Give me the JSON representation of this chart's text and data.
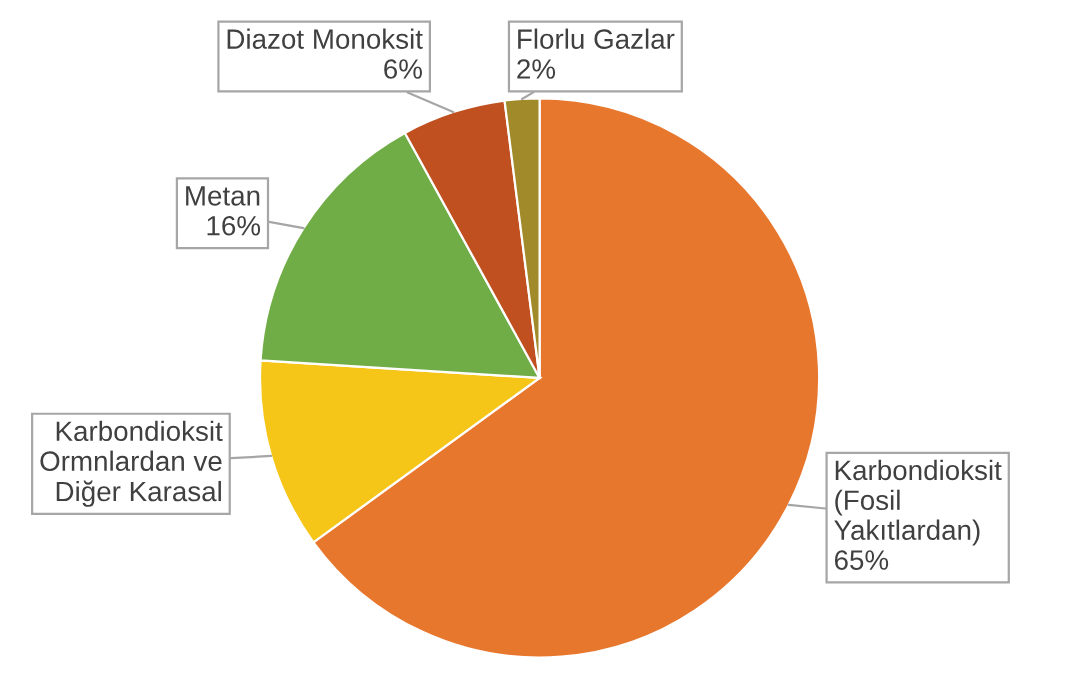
{
  "chart_data": {
    "type": "pie",
    "categories": [
      "Karbondioksit\n(Fosil\nYakıtlardan)",
      "Karbondioksit\nOrmnlardan ve\nDiğer Karasal",
      "Metan",
      "Diazot Monoksit",
      "Florlu Gazlar"
    ],
    "values": [
      65,
      11,
      16,
      6,
      2
    ],
    "value_labels": [
      "65%",
      null,
      "16%",
      "6%",
      "2%"
    ],
    "colors": [
      "#e8772e",
      "#f5c518",
      "#70ad47",
      "#c0501f",
      "#a08a2a"
    ],
    "legend": false
  }
}
